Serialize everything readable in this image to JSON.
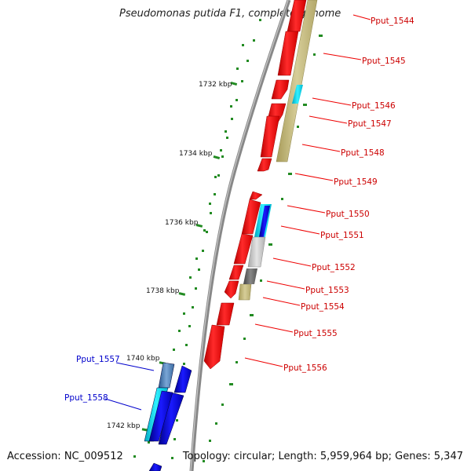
{
  "header": {
    "title": "Pseudomonas putida F1, complete genome"
  },
  "footer": {
    "accession": "Accession: NC_009512",
    "topology": "Topology: circular; Length: 5,959,964 bp; Genes: 5,347"
  },
  "scale_labels": [
    "1732 kbp",
    "1734 kbp",
    "1736 kbp",
    "1738 kbp",
    "1740 kbp",
    "1742 kbp"
  ],
  "right_genes": [
    "Pput_1544",
    "Pput_1545",
    "Pput_1546",
    "Pput_1547",
    "Pput_1548",
    "Pput_1549",
    "Pput_1550",
    "Pput_1551",
    "Pput_1552",
    "Pput_1553",
    "Pput_1554",
    "Pput_1555",
    "Pput_1556"
  ],
  "left_genes": [
    "Pput_1557",
    "Pput_1558"
  ],
  "colors": {
    "gene_label_right": "#cc0000",
    "gene_label_left": "#0000cc",
    "cds_red": "#ff1a1a",
    "cds_blue": "#0a0ae6",
    "tick_green": "#228b22",
    "backbone": "#808080",
    "olive": "#c9bf85",
    "cyan": "#00d8e8",
    "silver": "#c8c8c8",
    "darkgray": "#666666",
    "steel": "#4a78b0"
  }
}
